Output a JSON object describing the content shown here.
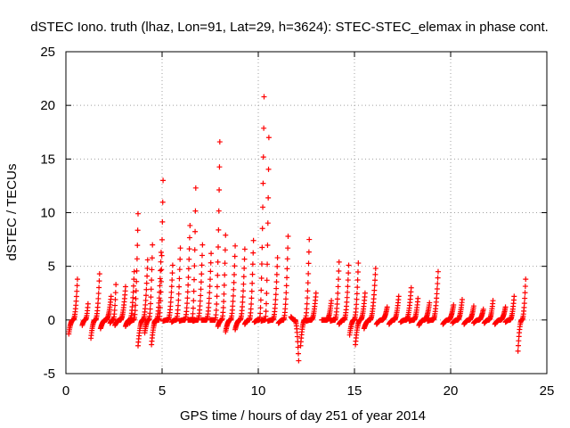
{
  "chart_data": {
    "type": "scatter",
    "title": "dSTEC Iono. truth (lhaz, Lon=91, Lat=29, h=3624): STEC-STEC_elemax in phase cont.",
    "xlabel": "GPS time / hours of day 251 of year 2014",
    "ylabel": "dSTEC  / TECUs",
    "xlim": [
      0,
      25
    ],
    "ylim": [
      -5,
      25
    ],
    "x_ticks": [
      0,
      5,
      10,
      15,
      20,
      25
    ],
    "x_tick_labels": [
      "0",
      "5",
      "10",
      "15",
      "20",
      "25"
    ],
    "y_ticks": [
      -5,
      0,
      5,
      10,
      15,
      20,
      25
    ],
    "y_tick_labels": [
      "-5",
      "0",
      "5",
      "10",
      "15",
      "20",
      "25"
    ],
    "grid": true,
    "legend": "none",
    "marker": "+",
    "color": "#ff0000",
    "arcs": [
      {
        "x0": 0.15,
        "x1": 0.6,
        "ymin": -1.3,
        "ymax": 3.8
      },
      {
        "x0": 0.85,
        "x1": 1.15,
        "ymin": -0.5,
        "ymax": 1.5
      },
      {
        "x0": 1.3,
        "x1": 1.75,
        "ymin": -1.7,
        "ymax": 4.3
      },
      {
        "x0": 1.8,
        "x1": 2.35,
        "ymin": -0.8,
        "ymax": 2.2
      },
      {
        "x0": 2.3,
        "x1": 2.6,
        "ymin": -0.3,
        "ymax": 3.3
      },
      {
        "x0": 2.55,
        "x1": 3.1,
        "ymin": -0.5,
        "ymax": 3.1
      },
      {
        "x0": 3.1,
        "x1": 3.55,
        "ymin": -0.6,
        "ymax": 4.5
      },
      {
        "x0": 3.3,
        "x1": 3.75,
        "ymin": -0.3,
        "ymax": 9.9
      },
      {
        "x0": 3.75,
        "x1": 4.25,
        "ymin": -2.4,
        "ymax": 5.6
      },
      {
        "x0": 4.1,
        "x1": 4.5,
        "ymin": -1.2,
        "ymax": 7.0
      },
      {
        "x0": 4.45,
        "x1": 4.95,
        "ymin": -2.3,
        "ymax": 6.3
      },
      {
        "x0": 4.6,
        "x1": 5.05,
        "ymin": -0.2,
        "ymax": 13.0
      },
      {
        "x0": 5.05,
        "x1": 5.55,
        "ymin": -0.1,
        "ymax": 5.1
      },
      {
        "x0": 5.5,
        "x1": 5.95,
        "ymin": -0.2,
        "ymax": 6.7
      },
      {
        "x0": 5.9,
        "x1": 6.45,
        "ymin": -0.1,
        "ymax": 8.8
      },
      {
        "x0": 6.35,
        "x1": 6.75,
        "ymin": 0.0,
        "ymax": 12.3
      },
      {
        "x0": 6.6,
        "x1": 7.1,
        "ymin": -0.1,
        "ymax": 7.0
      },
      {
        "x0": 7.05,
        "x1": 7.55,
        "ymin": 0.0,
        "ymax": 6.2
      },
      {
        "x0": 7.5,
        "x1": 8.0,
        "ymin": 0.0,
        "ymax": 16.6
      },
      {
        "x0": 7.9,
        "x1": 8.3,
        "ymin": -0.6,
        "ymax": 7.9
      },
      {
        "x0": 8.3,
        "x1": 8.8,
        "ymin": -1.1,
        "ymax": 6.9
      },
      {
        "x0": 8.8,
        "x1": 9.3,
        "ymin": -0.9,
        "ymax": 6.6
      },
      {
        "x0": 9.3,
        "x1": 9.75,
        "ymin": -0.4,
        "ymax": 7.4
      },
      {
        "x0": 9.8,
        "x1": 10.3,
        "ymin": -0.2,
        "ymax": 20.8
      },
      {
        "x0": 10.15,
        "x1": 10.55,
        "ymin": -0.1,
        "ymax": 17.0
      },
      {
        "x0": 10.5,
        "x1": 11.0,
        "ymin": -0.1,
        "ymax": 5.8
      },
      {
        "x0": 11.05,
        "x1": 11.55,
        "ymin": -0.3,
        "ymax": 7.8
      },
      {
        "x0": 11.7,
        "x1": 12.1,
        "ymin": -3.8,
        "ymax": 0.3
      },
      {
        "x0": 12.2,
        "x1": 12.65,
        "ymin": -2.4,
        "ymax": 7.5
      },
      {
        "x0": 12.5,
        "x1": 13.0,
        "ymin": -0.1,
        "ymax": 2.5
      },
      {
        "x0": 13.3,
        "x1": 13.8,
        "ymin": 0.0,
        "ymax": 1.8
      },
      {
        "x0": 13.75,
        "x1": 14.2,
        "ymin": -0.1,
        "ymax": 5.4
      },
      {
        "x0": 14.2,
        "x1": 14.7,
        "ymin": -0.4,
        "ymax": 5.1
      },
      {
        "x0": 14.75,
        "x1": 15.2,
        "ymin": -1.4,
        "ymax": 5.3
      },
      {
        "x0": 15.05,
        "x1": 15.55,
        "ymin": -2.3,
        "ymax": 2.5
      },
      {
        "x0": 15.5,
        "x1": 16.1,
        "ymin": -0.8,
        "ymax": 4.8
      },
      {
        "x0": 16.15,
        "x1": 16.7,
        "ymin": -0.4,
        "ymax": 1.2
      },
      {
        "x0": 16.8,
        "x1": 17.3,
        "ymin": -0.4,
        "ymax": 2.2
      },
      {
        "x0": 17.4,
        "x1": 17.95,
        "ymin": -0.2,
        "ymax": 3.0
      },
      {
        "x0": 17.85,
        "x1": 18.3,
        "ymin": -0.1,
        "ymax": 2.0
      },
      {
        "x0": 18.35,
        "x1": 18.9,
        "ymin": -0.5,
        "ymax": 1.6
      },
      {
        "x0": 18.8,
        "x1": 19.35,
        "ymin": -0.1,
        "ymax": 4.5
      },
      {
        "x0": 19.6,
        "x1": 20.15,
        "ymin": -0.4,
        "ymax": 1.4
      },
      {
        "x0": 20.1,
        "x1": 20.6,
        "ymin": -0.3,
        "ymax": 1.9
      },
      {
        "x0": 20.7,
        "x1": 21.2,
        "ymin": -0.4,
        "ymax": 1.3
      },
      {
        "x0": 21.2,
        "x1": 21.7,
        "ymin": -0.3,
        "ymax": 1.0
      },
      {
        "x0": 21.75,
        "x1": 22.2,
        "ymin": -0.3,
        "ymax": 1.8
      },
      {
        "x0": 22.3,
        "x1": 22.85,
        "ymin": -0.4,
        "ymax": 1.2
      },
      {
        "x0": 22.85,
        "x1": 23.3,
        "ymin": -0.2,
        "ymax": 2.2
      },
      {
        "x0": 23.5,
        "x1": 23.9,
        "ymin": -2.9,
        "ymax": 3.8
      }
    ]
  }
}
